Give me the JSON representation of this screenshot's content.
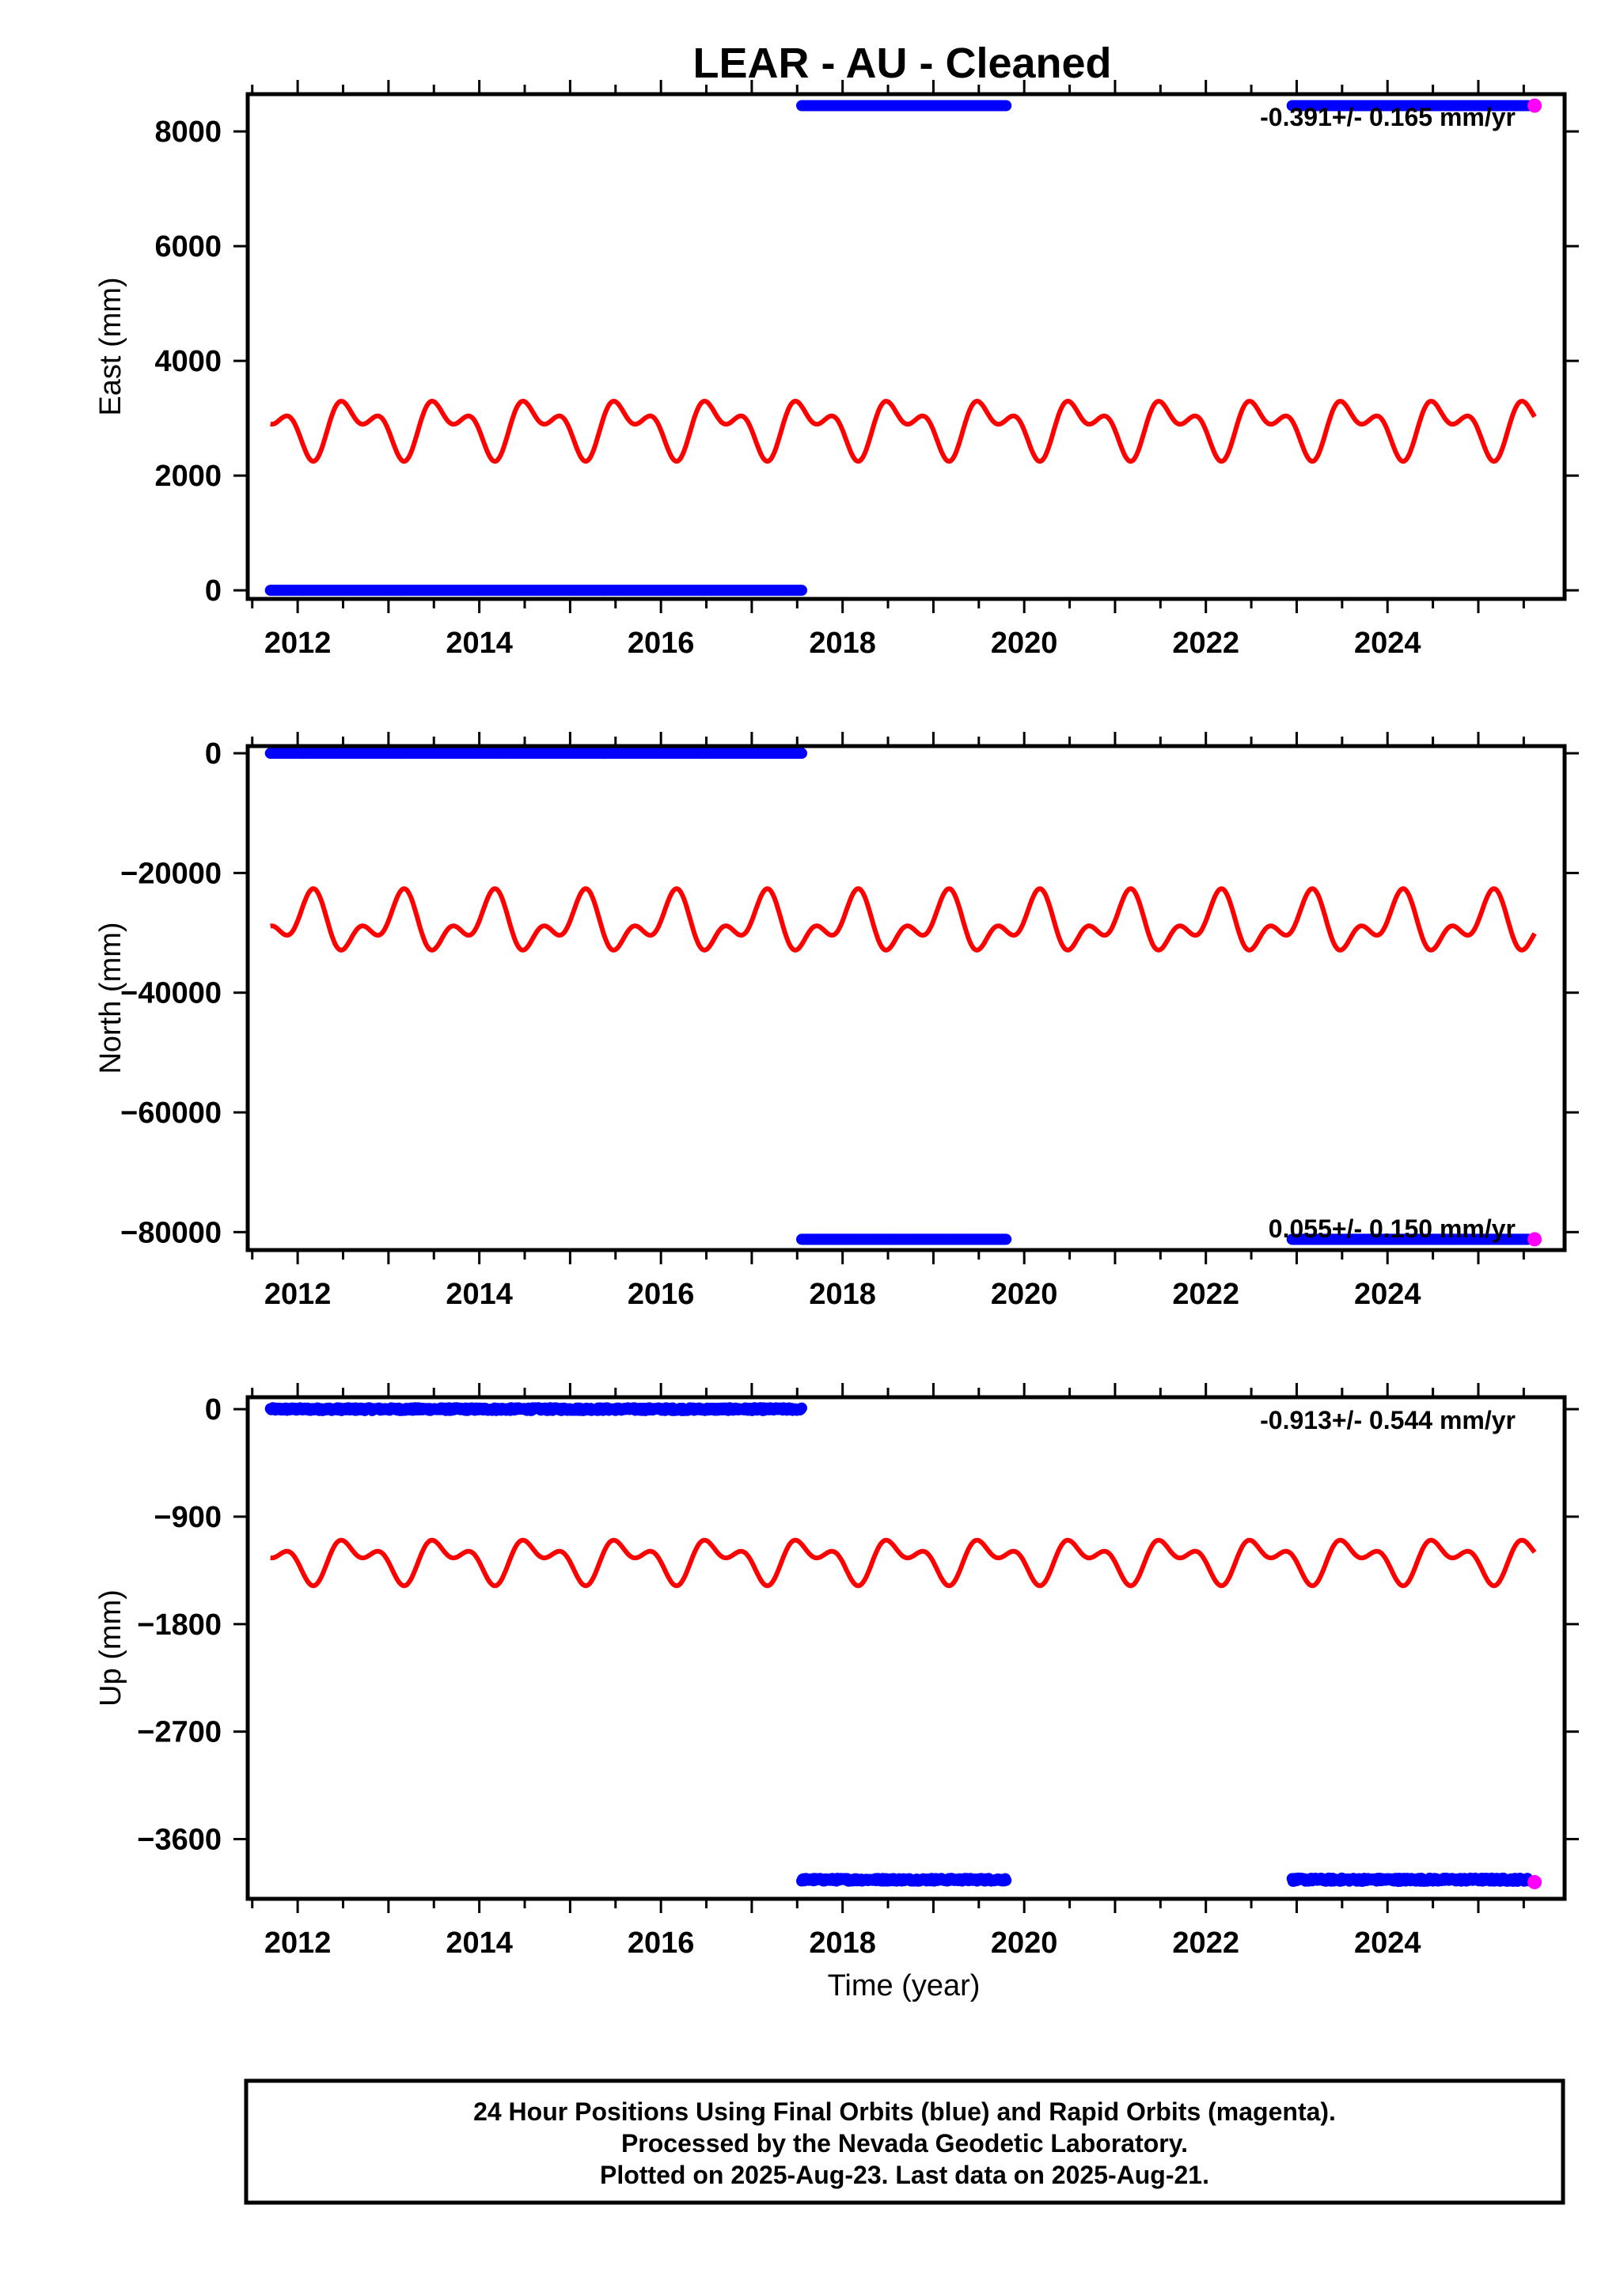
{
  "title": "LEAR  - AU - Cleaned",
  "xlabel": "Time (year)",
  "colors": {
    "final_orbits": "#0000ff",
    "rapid_orbits": "#ff00ff",
    "model": "#ff0000",
    "frame": "#000000"
  },
  "footer": {
    "line1": "24 Hour Positions Using Final Orbits (blue) and Rapid Orbits (magenta).",
    "line2": "Processed by the Nevada Geodetic Laboratory.",
    "line3": "Plotted on 2025-Aug-23. Last data on 2025-Aug-21."
  },
  "chart_data": [
    {
      "type": "scatter",
      "component": "east",
      "ylabel": "East (mm)",
      "rate": "-0.391+/- 0.165 mm/yr",
      "xlim": [
        2011.45,
        2025.95
      ],
      "ylim": [
        -150,
        8650
      ],
      "x_ticks": [
        2012,
        2014,
        2016,
        2018,
        2020,
        2022,
        2024
      ],
      "y_ticks": [
        0,
        2000,
        4000,
        6000,
        8000
      ],
      "y_tick_labels": [
        "0",
        "2000",
        "4000",
        "6000",
        "8000"
      ],
      "grid": false,
      "series": [
        {
          "orbits": "final",
          "x_start": 2011.7,
          "x_end": 2017.55,
          "y": 0,
          "scatter": 0
        },
        {
          "orbits": "final",
          "x_start": 2017.55,
          "x_end": 2019.8,
          "y": 8450,
          "scatter": 0
        },
        {
          "orbits": "final",
          "x_start": 2022.95,
          "x_end": 2025.55,
          "y": 8450,
          "scatter": 0
        },
        {
          "orbits": "rapid",
          "x_start": 2025.55,
          "x_end": 2025.62,
          "y": 8450,
          "scatter": 0
        }
      ],
      "model": {
        "x_start": 2011.7,
        "x_end": 2025.62,
        "mean": 2850,
        "annual_cos": -250,
        "annual_sin": -250,
        "semiannual_cos": 190,
        "semiannual_sin": -190
      }
    },
    {
      "type": "scatter",
      "component": "north",
      "ylabel": "North (mm)",
      "rate": "0.055+/- 0.150 mm/yr",
      "xlim": [
        2011.45,
        2025.95
      ],
      "ylim": [
        -83000,
        1200
      ],
      "x_ticks": [
        2012,
        2014,
        2016,
        2018,
        2020,
        2022,
        2024
      ],
      "y_ticks": [
        0,
        -20000,
        -40000,
        -60000,
        -80000
      ],
      "y_tick_labels": [
        "0",
        "−20000",
        "−40000",
        "−60000",
        "−80000"
      ],
      "grid": false,
      "series": [
        {
          "orbits": "final",
          "x_start": 2011.7,
          "x_end": 2017.55,
          "y": 0,
          "scatter": 0
        },
        {
          "orbits": "final",
          "x_start": 2017.55,
          "x_end": 2019.8,
          "y": -81200,
          "scatter": 0
        },
        {
          "orbits": "final",
          "x_start": 2022.95,
          "x_end": 2025.55,
          "y": -81200,
          "scatter": 0
        },
        {
          "orbits": "rapid",
          "x_start": 2025.55,
          "x_end": 2025.62,
          "y": -81200,
          "scatter": 0
        }
      ],
      "model": {
        "x_start": 2011.7,
        "x_end": 2025.62,
        "mean": -28500,
        "annual_cos": 2400,
        "annual_sin": 2400,
        "semiannual_cos": -1900,
        "semiannual_sin": 1900
      }
    },
    {
      "type": "scatter",
      "component": "up",
      "ylabel": "Up (mm)",
      "rate": "-0.913+/- 0.544 mm/yr",
      "xlim": [
        2011.45,
        2025.95
      ],
      "ylim": [
        -4100,
        100
      ],
      "x_ticks": [
        2012,
        2014,
        2016,
        2018,
        2020,
        2022,
        2024
      ],
      "y_ticks": [
        0,
        -900,
        -1800,
        -2700,
        -3600
      ],
      "y_tick_labels": [
        "0",
        "−900",
        "−1800",
        "−2700",
        "−3600"
      ],
      "grid": false,
      "series": [
        {
          "orbits": "final",
          "x_start": 2011.7,
          "x_end": 2017.55,
          "y": 0,
          "scatter": 12
        },
        {
          "orbits": "final",
          "x_start": 2017.55,
          "x_end": 2019.8,
          "y": -3940,
          "scatter": 12
        },
        {
          "orbits": "final",
          "x_start": 2022.95,
          "x_end": 2025.55,
          "y": -3940,
          "scatter": 14
        },
        {
          "orbits": "rapid",
          "x_start": 2025.55,
          "x_end": 2025.62,
          "y": -3960,
          "scatter": 0
        }
      ],
      "model": {
        "x_start": 2011.7,
        "x_end": 2025.62,
        "mean": -1260,
        "annual_cos": -90,
        "annual_sin": -90,
        "semiannual_cos": 70,
        "semiannual_sin": -70
      }
    }
  ]
}
